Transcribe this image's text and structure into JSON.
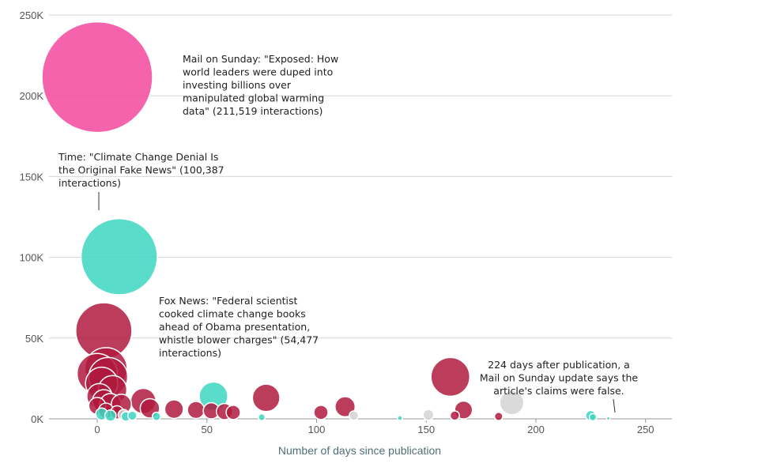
{
  "chart_data": {
    "type": "scatter",
    "title": "",
    "xlabel": "Number of days since publication",
    "ylabel": "",
    "xlim": [
      -22,
      262
    ],
    "ylim": [
      0,
      250000
    ],
    "x_ticks": [
      0,
      50,
      100,
      150,
      200,
      250
    ],
    "y_ticks": [
      0,
      50000,
      100000,
      150000,
      200000,
      250000
    ],
    "x_tick_labels": [
      "0",
      "50",
      "100",
      "150",
      "200",
      "250"
    ],
    "y_tick_labels": [
      "0K",
      "50K",
      "100K",
      "150K",
      "200K",
      "250K"
    ],
    "grid": "horizontal",
    "colors": {
      "pink": "#f2489c",
      "teal": "#3dd6c2",
      "red": "#b01a3e",
      "gray": "#d4d4d4"
    },
    "points": [
      {
        "x": 0,
        "y": 211519,
        "size": 211519,
        "color": "pink"
      },
      {
        "x": 10,
        "y": 100387,
        "size": 100387,
        "color": "teal"
      },
      {
        "x": 3,
        "y": 54477,
        "size": 54477,
        "color": "red"
      },
      {
        "x": 4,
        "y": 31000,
        "size": 31000,
        "color": "red"
      },
      {
        "x": 0,
        "y": 28000,
        "size": 28000,
        "color": "red"
      },
      {
        "x": 5,
        "y": 26000,
        "size": 26000,
        "color": "red"
      },
      {
        "x": 2,
        "y": 22000,
        "size": 18000,
        "color": "red"
      },
      {
        "x": 7,
        "y": 18000,
        "size": 14000,
        "color": "red"
      },
      {
        "x": 1,
        "y": 14000,
        "size": 11000,
        "color": "red"
      },
      {
        "x": 3,
        "y": 11000,
        "size": 9000,
        "color": "red"
      },
      {
        "x": 6,
        "y": 9000,
        "size": 8000,
        "color": "red"
      },
      {
        "x": 11,
        "y": 9000,
        "size": 7000,
        "color": "red"
      },
      {
        "x": 0,
        "y": 8000,
        "size": 5000,
        "color": "red"
      },
      {
        "x": 4,
        "y": 5000,
        "size": 4000,
        "color": "red"
      },
      {
        "x": 9,
        "y": 4000,
        "size": 3000,
        "color": "red"
      },
      {
        "x": 2,
        "y": 3000,
        "size": 2500,
        "color": "teal"
      },
      {
        "x": 6,
        "y": 2000,
        "size": 2200,
        "color": "teal"
      },
      {
        "x": 12,
        "y": 2500,
        "size": 2000,
        "color": "gray"
      },
      {
        "x": 13,
        "y": 1500,
        "size": 1500,
        "color": "teal"
      },
      {
        "x": 16,
        "y": 2000,
        "size": 1400,
        "color": "teal"
      },
      {
        "x": 21,
        "y": 11000,
        "size": 11000,
        "color": "red"
      },
      {
        "x": 24,
        "y": 6500,
        "size": 6500,
        "color": "red"
      },
      {
        "x": 27,
        "y": 1500,
        "size": 1200,
        "color": "teal"
      },
      {
        "x": 35,
        "y": 6000,
        "size": 6000,
        "color": "red"
      },
      {
        "x": 45,
        "y": 5500,
        "size": 5000,
        "color": "red"
      },
      {
        "x": 53,
        "y": 14000,
        "size": 14000,
        "color": "teal"
      },
      {
        "x": 52,
        "y": 5000,
        "size": 4500,
        "color": "red"
      },
      {
        "x": 58,
        "y": 4500,
        "size": 4500,
        "color": "red"
      },
      {
        "x": 62,
        "y": 4000,
        "size": 3500,
        "color": "red"
      },
      {
        "x": 77,
        "y": 13000,
        "size": 13000,
        "color": "red"
      },
      {
        "x": 75,
        "y": 1000,
        "size": 800,
        "color": "teal"
      },
      {
        "x": 102,
        "y": 4000,
        "size": 3500,
        "color": "red"
      },
      {
        "x": 113,
        "y": 7500,
        "size": 7000,
        "color": "red"
      },
      {
        "x": 117,
        "y": 2000,
        "size": 1500,
        "color": "gray"
      },
      {
        "x": 138,
        "y": 500,
        "size": 400,
        "color": "teal"
      },
      {
        "x": 151,
        "y": 2500,
        "size": 2000,
        "color": "gray"
      },
      {
        "x": 161,
        "y": 26000,
        "size": 26000,
        "color": "red"
      },
      {
        "x": 163,
        "y": 2000,
        "size": 1500,
        "color": "red"
      },
      {
        "x": 167,
        "y": 5500,
        "size": 5500,
        "color": "red"
      },
      {
        "x": 183,
        "y": 1500,
        "size": 1200,
        "color": "red"
      },
      {
        "x": 189,
        "y": 10000,
        "size": 10000,
        "color": "gray"
      },
      {
        "x": 225,
        "y": 2000,
        "size": 1800,
        "color": "teal"
      },
      {
        "x": 226,
        "y": 1000,
        "size": 900,
        "color": "teal"
      },
      {
        "x": 233,
        "y": 300,
        "size": 200,
        "color": "teal"
      }
    ],
    "annotations": [
      {
        "text": [
          "Mail on Sunday: \"Exposed: How",
          "world leaders were duped into",
          "investing billions over",
          "manipulated global warming",
          "data\" (211,519 interactions)"
        ]
      },
      {
        "text": [
          "Time: \"Climate Change Denial Is",
          "the Original Fake News\" (100,387",
          "interactions)"
        ]
      },
      {
        "text": [
          "Fox News: \"Federal scientist",
          "cooked climate change books",
          "ahead of Obama presentation,",
          "whistle blower charges\" (54,477",
          "interactions)"
        ]
      },
      {
        "text": [
          "224 days after publication, a",
          "Mail on Sunday update says the",
          "article's claims were false."
        ]
      }
    ]
  }
}
